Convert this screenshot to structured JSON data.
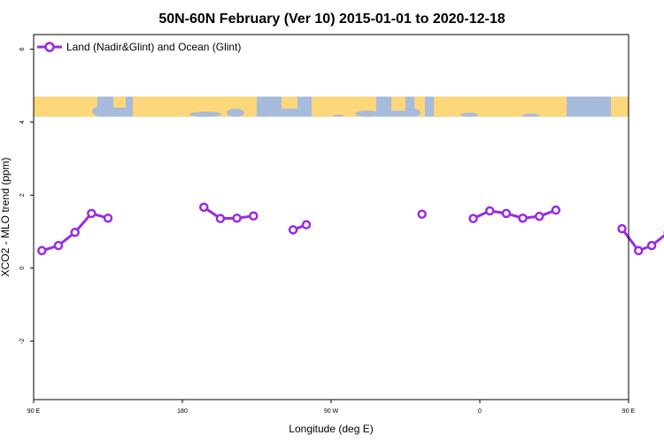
{
  "chart_data": {
    "type": "line",
    "title": "50N-60N February (Ver 10)   2015-01-01 to 2020-12-18",
    "xlabel": "Longitude (deg E)",
    "ylabel": "XCO2 - MLO trend (ppm)",
    "xlim": [
      90,
      450
    ],
    "ylim": [
      -3.6,
      6.4
    ],
    "x_ticks": [
      {
        "value": 90,
        "label": "90 E"
      },
      {
        "value": 180,
        "label": "180"
      },
      {
        "value": 270,
        "label": "90 W"
      },
      {
        "value": 360,
        "label": "0"
      },
      {
        "value": 450,
        "label": "90 E"
      },
      {
        "value": 540,
        "label": "180"
      }
    ],
    "y_ticks": [
      -2,
      0,
      2,
      4,
      6
    ],
    "legend": {
      "position": "top-left",
      "entries": [
        "Land (Nadir&Glint) and Ocean (Glint)"
      ]
    },
    "colors": {
      "series": "#9a2be2",
      "ocean": "#a7bbdc",
      "land": "#fed77a"
    },
    "map_strip": {
      "y_range": [
        4.15,
        4.7
      ]
    },
    "series": [
      {
        "name": "Land (Nadir&Glint) and Ocean (Glint)",
        "segments": [
          [
            [
              95,
              0.48
            ],
            [
              105,
              0.62
            ],
            [
              115,
              0.98
            ],
            [
              125,
              1.5
            ],
            [
              135,
              1.37
            ]
          ],
          [
            [
              193,
              1.67
            ],
            [
              203,
              1.36
            ],
            [
              213,
              1.37
            ],
            [
              223,
              1.43
            ]
          ],
          [
            [
              247,
              1.05
            ],
            [
              255,
              1.19
            ]
          ],
          [
            [
              325,
              1.48
            ]
          ],
          [
            [
              356,
              1.36
            ],
            [
              366,
              1.57
            ],
            [
              376,
              1.5
            ],
            [
              386,
              1.37
            ],
            [
              396,
              1.42
            ],
            [
              406,
              1.59
            ]
          ],
          [
            [
              446,
              1.08
            ],
            [
              456,
              0.48
            ],
            [
              464,
              0.62
            ],
            [
              474,
              0.98
            ],
            [
              484,
              1.5
            ],
            [
              494,
              1.37
            ]
          ]
        ]
      }
    ]
  }
}
